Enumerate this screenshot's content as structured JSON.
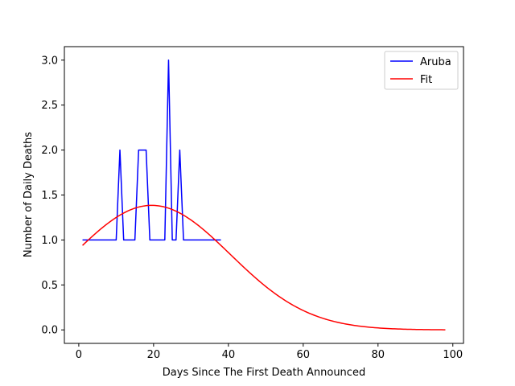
{
  "chart_data": {
    "type": "line",
    "title": "",
    "xlabel": "Days Since The First Death Announced",
    "ylabel": "Number of Daily Deaths",
    "xlim": [
      -3.85,
      102.85
    ],
    "ylim": [
      -0.15,
      3.15
    ],
    "xticks": [
      0,
      20,
      40,
      60,
      80,
      100
    ],
    "xtick_labels": [
      "0",
      "20",
      "40",
      "60",
      "80",
      "100"
    ],
    "yticks": [
      0.0,
      0.5,
      1.0,
      1.5,
      2.0,
      2.5,
      3.0
    ],
    "ytick_labels": [
      "0.0",
      "0.5",
      "1.0",
      "1.5",
      "2.0",
      "2.5",
      "3.0"
    ],
    "grid": false,
    "legend_position": "top-right",
    "series": [
      {
        "name": "Aruba",
        "color": "#0000ff",
        "x": [
          1,
          2,
          3,
          4,
          5,
          6,
          7,
          8,
          9,
          10,
          11,
          12,
          13,
          14,
          15,
          16,
          17,
          18,
          19,
          20,
          21,
          22,
          23,
          24,
          25,
          26,
          27,
          28,
          29,
          30,
          31,
          32,
          33,
          34,
          35,
          36,
          37,
          38
        ],
        "values": [
          1,
          1,
          1,
          1,
          1,
          1,
          1,
          1,
          1,
          1,
          2,
          1,
          1,
          1,
          1,
          2,
          2,
          2,
          1,
          1,
          1,
          1,
          1,
          3,
          1,
          1,
          2,
          1,
          1,
          1,
          1,
          1,
          1,
          1,
          1,
          1,
          1,
          1
        ]
      },
      {
        "name": "Fit",
        "color": "#ff0000",
        "curve": {
          "form": "gaussian",
          "amplitude": 1.385,
          "center": 19.5,
          "sigma": 21.0,
          "x_start": 1,
          "x_end": 98
        }
      }
    ]
  }
}
